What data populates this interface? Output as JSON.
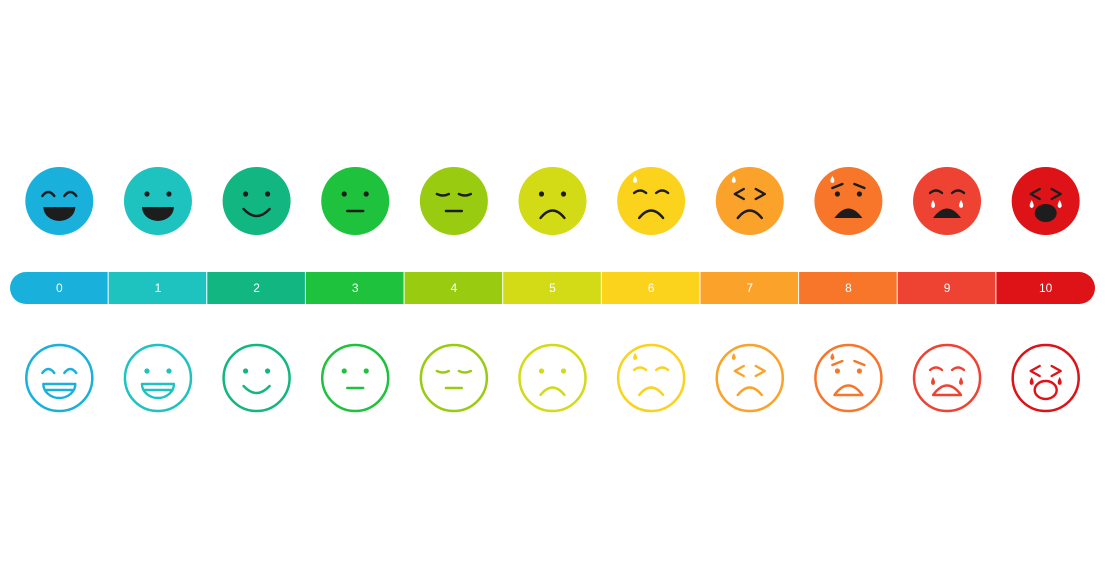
{
  "scale": {
    "levels": [
      0,
      1,
      2,
      3,
      4,
      5,
      6,
      7,
      8,
      9,
      10
    ],
    "colors": [
      "#1ab0dc",
      "#1ec3c0",
      "#12b680",
      "#1fc23c",
      "#99cc10",
      "#d2db16",
      "#fbd21c",
      "#fba22a",
      "#f7762a",
      "#ee4232",
      "#dd1318"
    ]
  }
}
